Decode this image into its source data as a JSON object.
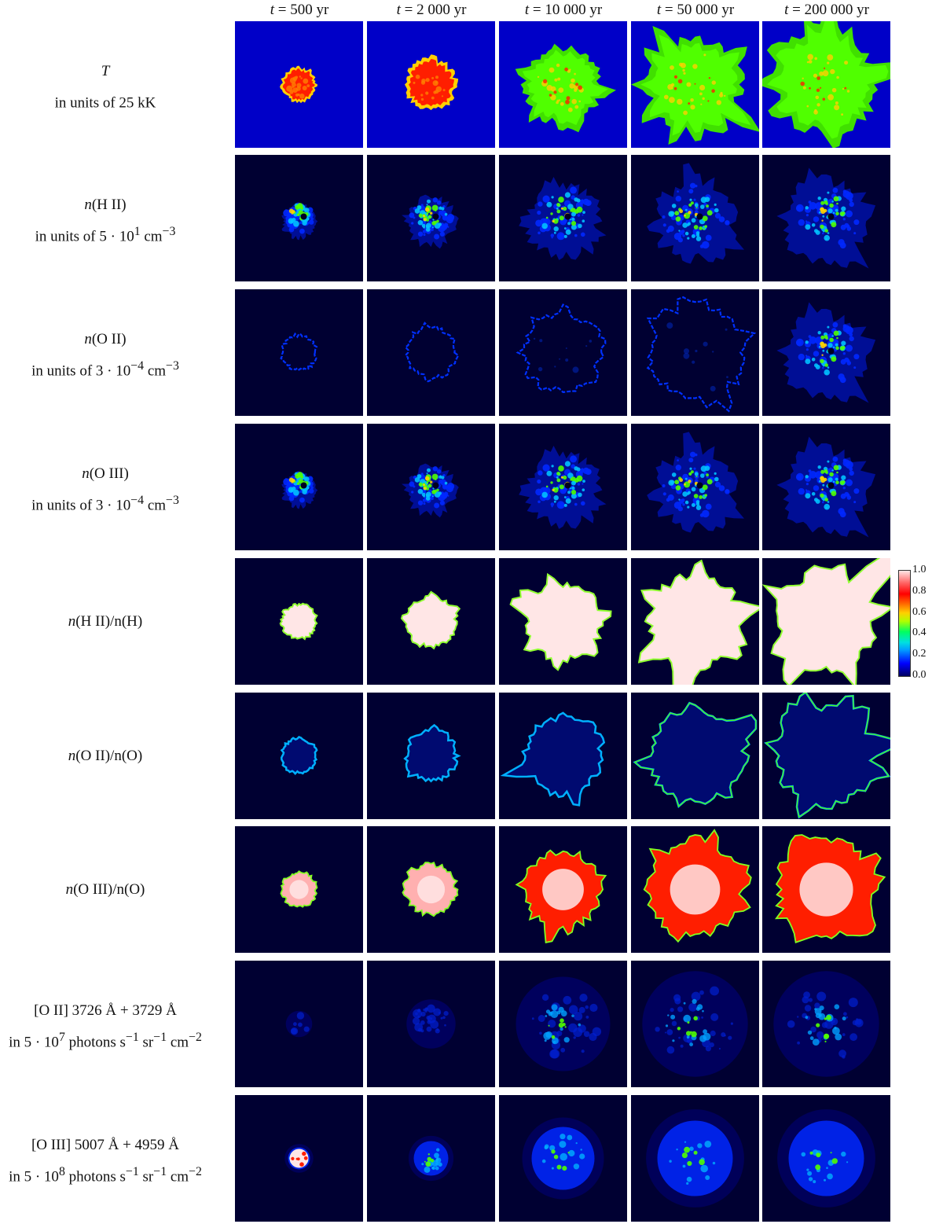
{
  "columns": [
    {
      "var": "t",
      "rest": " = 500 yr"
    },
    {
      "var": "t",
      "rest": " = 2 000 yr"
    },
    {
      "var": "t",
      "rest": " = 10 000 yr"
    },
    {
      "var": "t",
      "rest": " = 50 000 yr"
    },
    {
      "var": "t",
      "rest": " = 200 000 yr"
    }
  ],
  "rows": [
    {
      "l1_a": "T",
      "l1_b": "",
      "l2_a": "in units of 25 kK",
      "l2_sup": "",
      "l2_b": "",
      "l2_sup2": "",
      "l2_c": "",
      "l2_sup3": ""
    },
    {
      "l1_a": "n",
      "l1_b": "(H II)",
      "l2_a": "in units of 5 · 10",
      "l2_sup": "1",
      "l2_b": " cm",
      "l2_sup2": "−3",
      "l2_c": "",
      "l2_sup3": ""
    },
    {
      "l1_a": "n",
      "l1_b": "(O II)",
      "l2_a": "in units of 3 · 10",
      "l2_sup": "−4",
      "l2_b": " cm",
      "l2_sup2": "−3",
      "l2_c": "",
      "l2_sup3": ""
    },
    {
      "l1_a": "n",
      "l1_b": "(O III)",
      "l2_a": "in units of 3 · 10",
      "l2_sup": "−4",
      "l2_b": " cm",
      "l2_sup2": "−3",
      "l2_c": "",
      "l2_sup3": ""
    },
    {
      "l1_a": "n",
      "l1_b": "(H II)/n(H)",
      "l2_a": "",
      "l2_sup": "",
      "l2_b": "",
      "l2_sup2": "",
      "l2_c": "",
      "l2_sup3": ""
    },
    {
      "l1_a": "n",
      "l1_b": "(O II)/n(O)",
      "l2_a": "",
      "l2_sup": "",
      "l2_b": "",
      "l2_sup2": "",
      "l2_c": "",
      "l2_sup3": ""
    },
    {
      "l1_a": "n",
      "l1_b": "(O III)/n(O)",
      "l2_a": "",
      "l2_sup": "",
      "l2_b": "",
      "l2_sup2": "",
      "l2_c": "",
      "l2_sup3": ""
    },
    {
      "l1_a": "",
      "l1_b": "[O II] 3726 Å + 3729 Å",
      "l2_a": "in 5 · 10",
      "l2_sup": "7",
      "l2_b": " photons s",
      "l2_sup2": "−1",
      "l2_c": " sr",
      "l2_sup3": "−1"
    },
    {
      "l1_a": "",
      "l1_b": "[O III] 5007 Å + 4959 Å",
      "l2_a": "in 5 · 10",
      "l2_sup": "8",
      "l2_b": " photons s",
      "l2_sup2": "−1",
      "l2_c": " sr",
      "l2_sup3": "−1"
    }
  ],
  "row_label_tail": " cm",
  "row_label_tail_sup": "−2",
  "colorbar": {
    "ticks": [
      "1.0",
      "0.8",
      "0.6",
      "0.4",
      "0.2",
      "0.0"
    ],
    "range": [
      0.0,
      1.0
    ]
  },
  "colors": {
    "t_background": "#0000c8",
    "dark_background": "#000032",
    "hot_red": "#ff1e00",
    "green": "#50ff00",
    "blue": "#0028ff",
    "pale_pink": "#ffe6e6"
  }
}
